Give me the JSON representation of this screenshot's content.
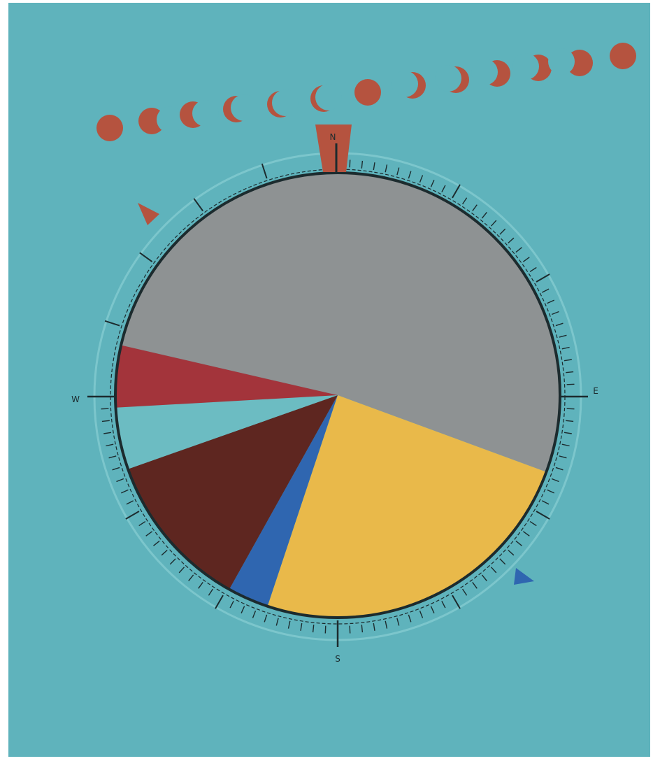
{
  "canvas": {
    "background_color": "#5fb3bc",
    "frame_color": "#ffffff"
  },
  "compass": {
    "labels": {
      "north": "N",
      "east": "E",
      "south": "S",
      "west": "W"
    },
    "tick_color": "#1c2b2e",
    "ring_color": "#7cc6cc",
    "north_marker_color": "#b5533f"
  },
  "pie": {
    "outline_color": "#1c2b2e",
    "slices": [
      {
        "id": "gray",
        "color": "#8e9293",
        "share": 0.52
      },
      {
        "id": "yellow",
        "color": "#e9b94a",
        "share": 0.245
      },
      {
        "id": "blue",
        "color": "#2f66b0",
        "share": 0.03
      },
      {
        "id": "dark-brown",
        "color": "#5e2620",
        "share": 0.115
      },
      {
        "id": "teal",
        "color": "#6cbcc2",
        "share": 0.045
      },
      {
        "id": "red",
        "color": "#a3343b",
        "share": 0.045
      }
    ]
  },
  "moon_phases": {
    "color": "#b5533f",
    "count": 13,
    "phases": [
      "full",
      "gibbous",
      "half",
      "crescent",
      "thin-crescent",
      "thin-crescent",
      "full",
      "crescent",
      "crescent",
      "half",
      "half",
      "gibbous",
      "full"
    ]
  },
  "markers": {
    "northwest_triangle_color": "#b5533f",
    "southeast_triangle_color": "#2f66b0"
  }
}
